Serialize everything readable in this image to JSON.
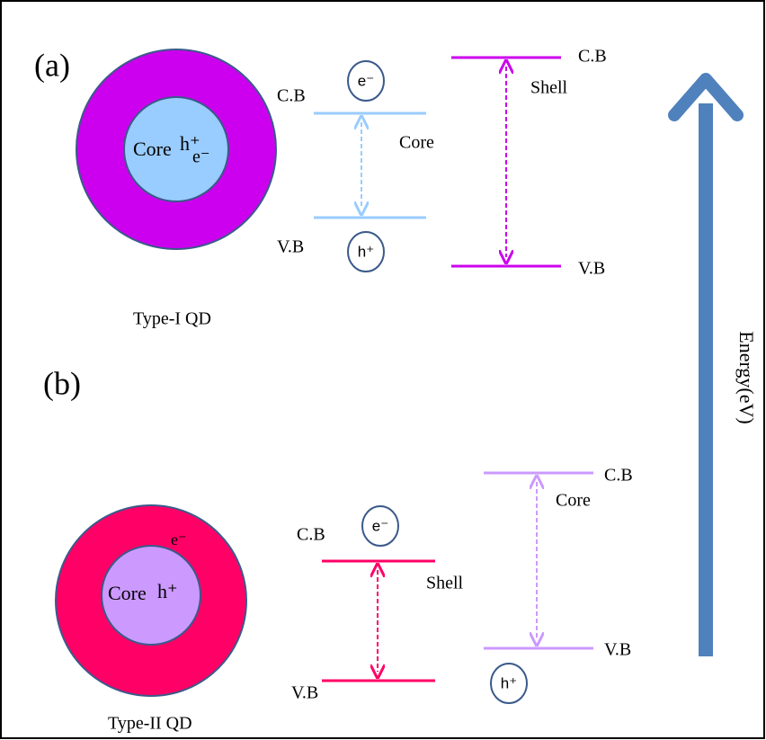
{
  "panel_a": {
    "label": "(a)",
    "dot_core": "Core",
    "dot_hole": "h⁺",
    "dot_electron": "e⁻",
    "caption": "Type-I QD",
    "core_band": {
      "cb": "C.B",
      "vb": "V.B",
      "name": "Core",
      "electron": "e⁻",
      "hole": "h⁺"
    },
    "shell_band": {
      "cb": "C.B",
      "vb": "V.B",
      "name": "Shell"
    }
  },
  "panel_b": {
    "label": "(b)",
    "dot_core": "Core",
    "dot_hole": "h⁺",
    "dot_electron": "e⁻",
    "caption": "Type-II QD",
    "shell_band": {
      "cb": "C.B",
      "vb": "V.B",
      "name": "Shell",
      "electron": "e⁻"
    },
    "core_band": {
      "cb": "C.B",
      "vb": "V.B",
      "name": "Core",
      "hole": "h⁺"
    }
  },
  "energy_axis": "Energy(eV)"
}
